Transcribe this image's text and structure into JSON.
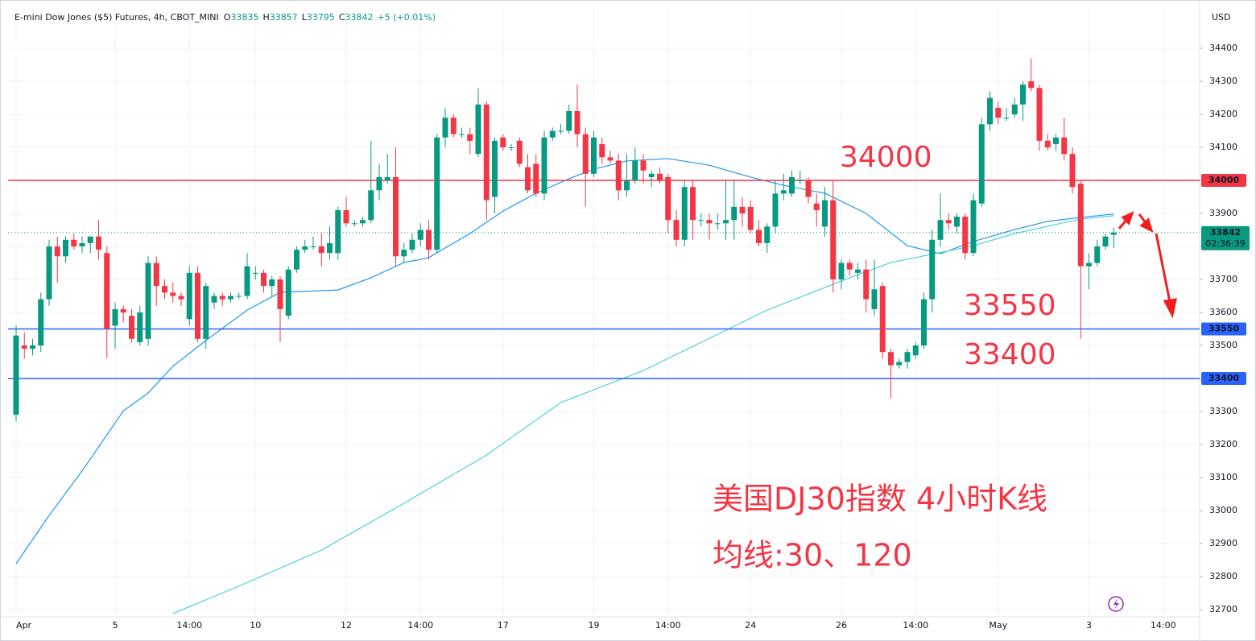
{
  "chart_data": {
    "type": "candlestick",
    "header": {
      "symbol": "E-mini Dow Jones ($5) Futures, 4h, CBOT_MINI",
      "ohlc": [
        {
          "label": "O",
          "value": 33835
        },
        {
          "label": "H",
          "value": 33857
        },
        {
          "label": "L",
          "value": 33795
        },
        {
          "label": "C",
          "value": 33842
        }
      ],
      "change": "+5 (+0.01%)"
    },
    "currency": "USD",
    "up_color": "#089981",
    "down_color": "#f23645",
    "categories": [
      "Apr",
      null,
      null,
      null,
      null,
      null,
      null,
      null,
      null,
      null,
      null,
      null,
      "5",
      null,
      null,
      null,
      null,
      null,
      null,
      null,
      null,
      "14:00",
      null,
      null,
      null,
      null,
      null,
      null,
      null,
      "10",
      null,
      null,
      null,
      null,
      null,
      null,
      null,
      null,
      null,
      null,
      "12",
      null,
      null,
      null,
      null,
      null,
      null,
      null,
      null,
      "14:00",
      null,
      null,
      null,
      null,
      null,
      null,
      null,
      null,
      null,
      "17",
      null,
      null,
      null,
      null,
      null,
      null,
      null,
      null,
      null,
      null,
      "19",
      null,
      null,
      null,
      null,
      null,
      null,
      null,
      null,
      "14:00",
      null,
      null,
      null,
      null,
      null,
      null,
      null,
      null,
      null,
      "24",
      null,
      null,
      null,
      null,
      null,
      null,
      null,
      null,
      null,
      null,
      "26",
      null,
      null,
      null,
      null,
      null,
      null,
      null,
      null,
      "14:00",
      null,
      null,
      null,
      null,
      null,
      null,
      null,
      null,
      null,
      "May",
      null,
      null,
      null,
      null,
      null,
      null,
      null,
      null,
      null,
      null,
      "3",
      null,
      null,
      null,
      null,
      null,
      null,
      null,
      null,
      "14:00"
    ],
    "candles": [
      [
        33290,
        33560,
        33270,
        33530
      ],
      [
        33500,
        33540,
        33460,
        33490
      ],
      [
        33490,
        33520,
        33470,
        33500
      ],
      [
        33500,
        33660,
        33480,
        33640
      ],
      [
        33640,
        33820,
        33620,
        33800
      ],
      [
        33800,
        33830,
        33690,
        33770
      ],
      [
        33770,
        33830,
        33750,
        33820
      ],
      [
        33820,
        33840,
        33790,
        33800
      ],
      [
        33800,
        33830,
        33780,
        33810
      ],
      [
        33810,
        33830,
        33780,
        33830
      ],
      [
        33830,
        33880,
        33760,
        33790
      ],
      [
        33780,
        33800,
        33460,
        33550
      ],
      [
        33560,
        33630,
        33490,
        33610
      ],
      [
        33610,
        33620,
        33570,
        33600
      ],
      [
        33590,
        33610,
        33510,
        33520
      ],
      [
        33510,
        33620,
        33500,
        33600
      ],
      [
        33520,
        33770,
        33500,
        33750
      ],
      [
        33750,
        33770,
        33620,
        33680
      ],
      [
        33680,
        33700,
        33640,
        33660
      ],
      [
        33660,
        33690,
        33630,
        33650
      ],
      [
        33650,
        33660,
        33620,
        33640
      ],
      [
        33580,
        33740,
        33560,
        33720
      ],
      [
        33720,
        33740,
        33510,
        33520
      ],
      [
        33520,
        33690,
        33490,
        33680
      ],
      [
        33630,
        33660,
        33610,
        33650
      ],
      [
        33650,
        33660,
        33620,
        33640
      ],
      [
        33640,
        33660,
        33630,
        33650
      ],
      [
        33650,
        33660,
        33640,
        33650
      ],
      [
        33650,
        33780,
        33640,
        33740
      ],
      [
        33720,
        33740,
        33700,
        33720
      ],
      [
        33720,
        33730,
        33660,
        33680
      ],
      [
        33680,
        33710,
        33650,
        33700
      ],
      [
        33700,
        33710,
        33510,
        33610
      ],
      [
        33590,
        33740,
        33580,
        33730
      ],
      [
        33730,
        33800,
        33720,
        33790
      ],
      [
        33790,
        33820,
        33780,
        33800
      ],
      [
        33800,
        33830,
        33790,
        33800
      ],
      [
        33800,
        33840,
        33740,
        33780
      ],
      [
        33780,
        33860,
        33760,
        33810
      ],
      [
        33780,
        33920,
        33760,
        33910
      ],
      [
        33910,
        33950,
        33860,
        33870
      ],
      [
        33870,
        33880,
        33860,
        33870
      ],
      [
        33870,
        33890,
        33860,
        33880
      ],
      [
        33880,
        34120,
        33870,
        33970
      ],
      [
        33970,
        34050,
        33940,
        34010
      ],
      [
        34000,
        34080,
        33990,
        34010
      ],
      [
        34010,
        34100,
        33740,
        33770
      ],
      [
        33770,
        33810,
        33750,
        33790
      ],
      [
        33790,
        33840,
        33780,
        33820
      ],
      [
        33820,
        33870,
        33800,
        33850
      ],
      [
        33850,
        33880,
        33760,
        33790
      ],
      [
        33790,
        34140,
        33780,
        34130
      ],
      [
        34130,
        34220,
        34100,
        34190
      ],
      [
        34190,
        34200,
        34130,
        34140
      ],
      [
        34140,
        34160,
        34130,
        34140
      ],
      [
        34140,
        34160,
        34080,
        34120
      ],
      [
        34080,
        34280,
        34070,
        34230
      ],
      [
        34230,
        34240,
        33880,
        33940
      ],
      [
        33950,
        34130,
        33900,
        34120
      ],
      [
        34130,
        34140,
        34090,
        34100
      ],
      [
        34100,
        34110,
        34090,
        34100
      ],
      [
        34120,
        34130,
        34040,
        34050
      ],
      [
        34040,
        34080,
        33960,
        33970
      ],
      [
        34050,
        34080,
        33950,
        33960
      ],
      [
        33960,
        34150,
        33940,
        34130
      ],
      [
        34130,
        34160,
        34120,
        34150
      ],
      [
        34150,
        34170,
        34140,
        34150
      ],
      [
        34150,
        34230,
        34140,
        34210
      ],
      [
        34210,
        34290,
        34100,
        34140
      ],
      [
        34140,
        34160,
        33920,
        34020
      ],
      [
        34020,
        34150,
        34010,
        34130
      ],
      [
        34110,
        34130,
        34050,
        34070
      ],
      [
        34070,
        34090,
        34050,
        34060
      ],
      [
        34060,
        34080,
        33940,
        33970
      ],
      [
        33970,
        34080,
        33950,
        34000
      ],
      [
        34000,
        34100,
        33990,
        34060
      ],
      [
        34060,
        34080,
        33990,
        34030
      ],
      [
        34010,
        34030,
        33980,
        34020
      ],
      [
        34020,
        34040,
        33990,
        34000
      ],
      [
        34010,
        34020,
        33840,
        33880
      ],
      [
        33880,
        33910,
        33800,
        33820
      ],
      [
        33820,
        34000,
        33800,
        33980
      ],
      [
        33980,
        34000,
        33820,
        33880
      ],
      [
        33880,
        33900,
        33860,
        33880
      ],
      [
        33880,
        33900,
        33820,
        33870
      ],
      [
        33870,
        33900,
        33850,
        33870
      ],
      [
        33870,
        34000,
        33820,
        33880
      ],
      [
        33880,
        34000,
        33820,
        33920
      ],
      [
        33920,
        33950,
        33860,
        33900
      ],
      [
        33920,
        33940,
        33840,
        33850
      ],
      [
        33850,
        33880,
        33800,
        33810
      ],
      [
        33810,
        33870,
        33780,
        33860
      ],
      [
        33860,
        34000,
        33840,
        33960
      ],
      [
        33960,
        34020,
        33940,
        33970
      ],
      [
        33960,
        34030,
        33950,
        34010
      ],
      [
        34000,
        34030,
        33990,
        34000
      ],
      [
        34000,
        34010,
        33930,
        33950
      ],
      [
        33930,
        33960,
        33860,
        33910
      ],
      [
        33860,
        33980,
        33830,
        33940
      ],
      [
        33940,
        34000,
        33660,
        33700
      ],
      [
        33700,
        33760,
        33670,
        33750
      ],
      [
        33750,
        33760,
        33710,
        33730
      ],
      [
        33720,
        33750,
        33700,
        33730
      ],
      [
        33730,
        33760,
        33600,
        33640
      ],
      [
        33610,
        33760,
        33590,
        33670
      ],
      [
        33680,
        33690,
        33460,
        33480
      ],
      [
        33480,
        33490,
        33340,
        33440
      ],
      [
        33440,
        33460,
        33430,
        33450
      ],
      [
        33450,
        33490,
        33430,
        33480
      ],
      [
        33470,
        33510,
        33460,
        33500
      ],
      [
        33500,
        33660,
        33490,
        33640
      ],
      [
        33640,
        33850,
        33600,
        33820
      ],
      [
        33820,
        33960,
        33800,
        33880
      ],
      [
        33880,
        33900,
        33850,
        33870
      ],
      [
        33860,
        33900,
        33840,
        33890
      ],
      [
        33890,
        33900,
        33760,
        33780
      ],
      [
        33780,
        33960,
        33770,
        33940
      ],
      [
        33930,
        34190,
        33920,
        34170
      ],
      [
        34170,
        34270,
        34150,
        34250
      ],
      [
        34220,
        34240,
        34170,
        34190
      ],
      [
        34190,
        34220,
        34180,
        34190
      ],
      [
        34200,
        34250,
        34190,
        34230
      ],
      [
        34230,
        34300,
        34180,
        34290
      ],
      [
        34300,
        34370,
        34270,
        34280
      ],
      [
        34280,
        34290,
        34090,
        34120
      ],
      [
        34120,
        34140,
        34090,
        34100
      ],
      [
        34110,
        34140,
        34090,
        34130
      ],
      [
        34130,
        34190,
        34060,
        34080
      ],
      [
        34080,
        34100,
        33960,
        33980
      ],
      [
        33990,
        34000,
        33520,
        33740
      ],
      [
        33740,
        33780,
        33670,
        33750
      ],
      [
        33750,
        33820,
        33740,
        33800
      ],
      [
        33800,
        33840,
        33790,
        33830
      ],
      [
        33835,
        33857,
        33795,
        33842
      ],
      null,
      null,
      null,
      null,
      null,
      null
    ],
    "ma_lines": [
      {
        "color": "#2196f3",
        "x": [
          0,
          4,
          8,
          13,
          16,
          19,
          23,
          28,
          32,
          39,
          43,
          47,
          50,
          55,
          59,
          63,
          67,
          70,
          74,
          79,
          84,
          89,
          93,
          98,
          103,
          108,
          112,
          116,
          121,
          125,
          129,
          133
        ],
        "values": [
          32839,
          32985,
          33120,
          33302,
          33356,
          33437,
          33515,
          33607,
          33661,
          33668,
          33705,
          33751,
          33766,
          33839,
          33907,
          33961,
          34005,
          34034,
          34059,
          34066,
          34046,
          34010,
          33985,
          33961,
          33900,
          33802,
          33778,
          33815,
          33851,
          33876,
          33888,
          33898
        ]
      },
      {
        "color": "#4dd0e1",
        "x": [
          19,
          27,
          37,
          47,
          57,
          66,
          76,
          86,
          91,
          96,
          101,
          106,
          116,
          121,
          129,
          133
        ],
        "values": [
          32688,
          32771,
          32880,
          33022,
          33168,
          33327,
          33424,
          33546,
          33607,
          33656,
          33705,
          33751,
          33802,
          33839,
          33883,
          33893
        ]
      }
    ],
    "ylim": [
      32678,
      34522
    ],
    "yticks": [
      32700,
      32800,
      32900,
      33000,
      33100,
      33200,
      33300,
      33400,
      33500,
      33600,
      33700,
      33800,
      33900,
      34000,
      34100,
      34200,
      34300,
      34400
    ],
    "grid": true,
    "price_levels": [
      {
        "value": 34000,
        "color": "#f23645"
      },
      {
        "value": 33550,
        "color": "#2962ff"
      },
      {
        "value": 33400,
        "color": "#2962ff"
      }
    ],
    "last_price": {
      "value": 33842,
      "countdown": "02:36:39",
      "color": "#089981"
    },
    "annotations": [
      {
        "text": "34000"
      },
      {
        "text": "33550"
      },
      {
        "text": "33400"
      },
      {
        "text": "美国DJ30指数 4小时K线"
      },
      {
        "text": "均线:30、120"
      }
    ]
  }
}
